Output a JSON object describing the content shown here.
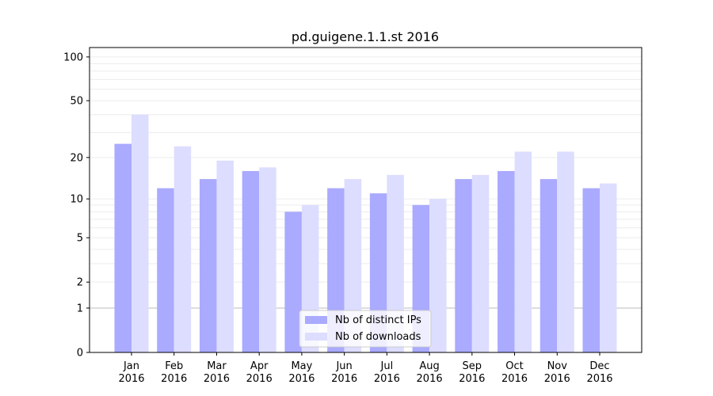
{
  "chart_data": {
    "type": "bar",
    "title": "pd.guigene.1.1.st 2016",
    "xlabel": "",
    "ylabel": "",
    "yscale": "log(1+x)",
    "ylim": [
      0,
      116
    ],
    "yticks": [
      0,
      1,
      2,
      5,
      10,
      20,
      50,
      100
    ],
    "grid": true,
    "legend_position": "bottom-center",
    "categories": [
      [
        "Jan",
        "2016"
      ],
      [
        "Feb",
        "2016"
      ],
      [
        "Mar",
        "2016"
      ],
      [
        "Apr",
        "2016"
      ],
      [
        "May",
        "2016"
      ],
      [
        "Jun",
        "2016"
      ],
      [
        "Jul",
        "2016"
      ],
      [
        "Aug",
        "2016"
      ],
      [
        "Sep",
        "2016"
      ],
      [
        "Oct",
        "2016"
      ],
      [
        "Nov",
        "2016"
      ],
      [
        "Dec",
        "2016"
      ]
    ],
    "series": [
      {
        "name": "Nb of distinct IPs",
        "color": "#aaaaff",
        "values": [
          25,
          12,
          14,
          16,
          8,
          12,
          11,
          9,
          14,
          16,
          14,
          12
        ]
      },
      {
        "name": "Nb of downloads",
        "color": "#ddddff",
        "values": [
          40,
          24,
          19,
          17,
          9,
          14,
          15,
          10,
          15,
          22,
          22,
          13
        ]
      }
    ]
  }
}
